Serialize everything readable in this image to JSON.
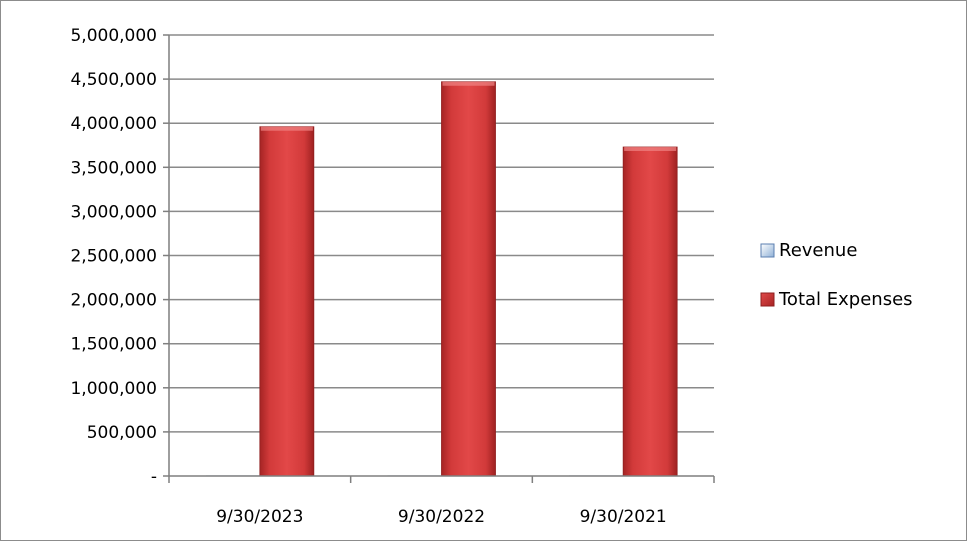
{
  "chart_data": {
    "type": "bar",
    "categories": [
      "9/30/2023",
      "9/30/2022",
      "9/30/2021"
    ],
    "series": [
      {
        "name": "Revenue",
        "values": [
          0,
          0,
          0
        ],
        "color": "#dce6f2"
      },
      {
        "name": "Total Expenses",
        "values": [
          3960000,
          4470000,
          3730000
        ],
        "color": "#d23b3b"
      }
    ],
    "ylim": [
      0,
      5000000
    ],
    "yticks": [
      0,
      500000,
      1000000,
      1500000,
      2000000,
      2500000,
      3000000,
      3500000,
      4000000,
      4500000,
      5000000
    ],
    "ytick_labels": [
      "-",
      "500,000",
      "1,000,000",
      "1,500,000",
      "2,000,000",
      "2,500,000",
      "3,000,000",
      "3,500,000",
      "4,000,000",
      "4,500,000",
      "5,000,000"
    ],
    "grid": true,
    "legend_position": "right"
  }
}
